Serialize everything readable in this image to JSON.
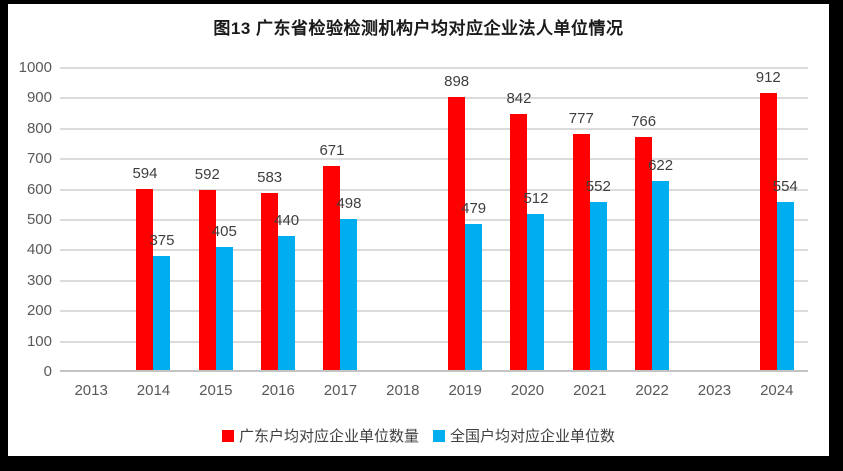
{
  "title": "图13 广东省检验检测机构户均对应企业法人单位情况",
  "chart_data": {
    "type": "bar",
    "title": "图13 广东省检验检测机构户均对应企业法人单位情况",
    "categories": [
      "2013",
      "2014",
      "2015",
      "2016",
      "2017",
      "2018",
      "2019",
      "2020",
      "2021",
      "2022",
      "2023",
      "2024"
    ],
    "series": [
      {
        "name": "广东户均对应企业单位数量",
        "color": "#FF0000",
        "values": [
          null,
          594,
          592,
          583,
          671,
          null,
          898,
          842,
          777,
          766,
          null,
          912
        ]
      },
      {
        "name": "全国户均对应企业单位数",
        "color": "#00AEEF",
        "values": [
          null,
          375,
          405,
          440,
          498,
          null,
          479,
          512,
          552,
          622,
          null,
          554
        ]
      }
    ],
    "xlabel": "",
    "ylabel": "",
    "ylim": [
      0,
      1000
    ],
    "yticks": [
      0,
      100,
      200,
      300,
      400,
      500,
      600,
      700,
      800,
      900,
      1000
    ],
    "grid": true,
    "data_labels": true,
    "legend_position": "bottom"
  },
  "colors": {
    "frame": "#000000",
    "background": "#FFFFFF",
    "gridline": "#DBDBDB",
    "axis_line": "#C3C3C3",
    "tick_text": "#595959",
    "data_label_text": "#3f3f3f",
    "legend_text": "#404040",
    "title_text": "#1a1a1a"
  }
}
